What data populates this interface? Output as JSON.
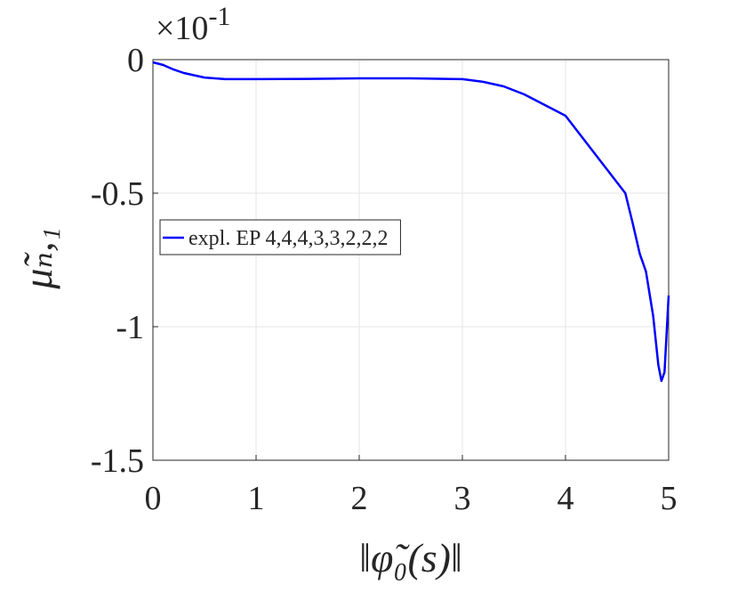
{
  "chart_data": {
    "type": "line",
    "y_exponent": {
      "base": "×10",
      "power": "-1"
    },
    "xlabel": "‖φ̃₀(s)‖",
    "ylabel": "μ̃ₙ,₁",
    "x": [
      0,
      0.1,
      0.2,
      0.3,
      0.5,
      0.7,
      1,
      1.5,
      2,
      2.5,
      3,
      3.2,
      3.4,
      3.6,
      3.8,
      4.0,
      4.2,
      4.4,
      4.58,
      4.65,
      4.72,
      4.78,
      4.85,
      4.9,
      4.93,
      4.96,
      5.0
    ],
    "series": [
      {
        "name": "expl. EP 4,4,4,3,3,2,2,2",
        "color": "#0000ff",
        "values": [
          -0.01,
          -0.02,
          -0.037,
          -0.05,
          -0.067,
          -0.073,
          -0.073,
          -0.072,
          -0.07,
          -0.07,
          -0.073,
          -0.083,
          -0.1,
          -0.13,
          -0.17,
          -0.21,
          -0.31,
          -0.41,
          -0.5,
          -0.61,
          -0.727,
          -0.793,
          -0.96,
          -1.143,
          -1.203,
          -1.17,
          -0.883
        ]
      }
    ],
    "xlim": [
      0,
      5
    ],
    "xticks": [
      0,
      1,
      2,
      3,
      4,
      5
    ],
    "ylim": [
      -1.5,
      0
    ],
    "yticks": [
      -1.5,
      -1,
      -0.5,
      0
    ],
    "grid": true,
    "legend": "west"
  }
}
